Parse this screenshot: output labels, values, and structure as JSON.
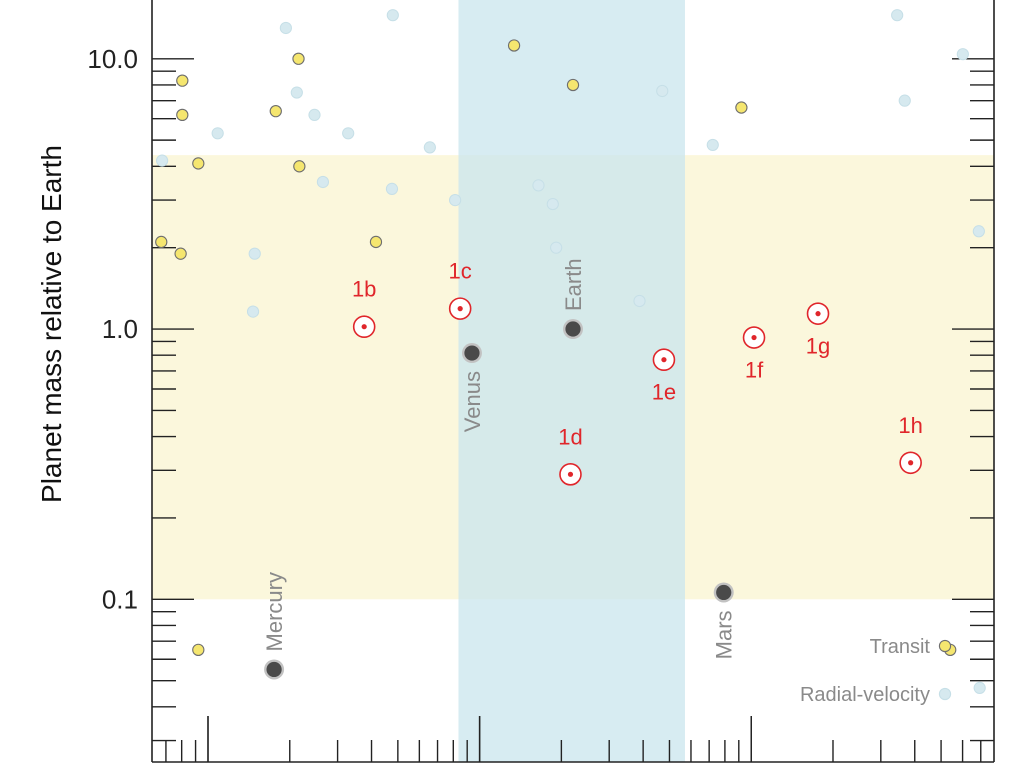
{
  "chart_data": {
    "type": "scatter",
    "ylabel": "Planet mass relative to Earth",
    "yscale": "log",
    "ylim": [
      0.025,
      16.5
    ],
    "xlim": [
      0,
      1
    ],
    "ytick_labels": [
      {
        "value": 0.1,
        "label": "0.1"
      },
      {
        "value": 1.0,
        "label": "1.0"
      },
      {
        "value": 10.0,
        "label": "10.0"
      }
    ],
    "bands": [
      {
        "name": "habitable-zone",
        "orientation": "vertical",
        "from": 0.364,
        "to": 0.633,
        "color": "#cce7ee"
      },
      {
        "name": "mass-range",
        "orientation": "horizontal",
        "from": 0.1,
        "to": 4.4,
        "color": "#fbf7dc"
      }
    ],
    "legend": {
      "placement": "bottom-right",
      "entries": [
        {
          "label": "Transit",
          "color": "#f5e66f"
        },
        {
          "label": "Radial-velocity",
          "color": "#d6e9ef"
        }
      ]
    },
    "colors": {
      "transit_fill": "#f5e66f",
      "transit_stroke": "#6e6e6e",
      "rv_fill": "#d6e9ef",
      "trappist": "#e0262b",
      "solar_fill": "#4a4a4a",
      "solar_ring": "#c2c2c2",
      "solar_label": "#8a8a8a"
    },
    "trappist_planets": [
      {
        "label": "1b",
        "x": 0.252,
        "y": 1.02,
        "label_pos": "above"
      },
      {
        "label": "1c",
        "x": 0.366,
        "y": 1.19,
        "label_pos": "above"
      },
      {
        "label": "1d",
        "x": 0.497,
        "y": 0.29,
        "label_pos": "above"
      },
      {
        "label": "1e",
        "x": 0.608,
        "y": 0.77,
        "label_pos": "below"
      },
      {
        "label": "1f",
        "x": 0.715,
        "y": 0.93,
        "label_pos": "below"
      },
      {
        "label": "1g",
        "x": 0.791,
        "y": 1.14,
        "label_pos": "below"
      },
      {
        "label": "1h",
        "x": 0.901,
        "y": 0.32,
        "label_pos": "above"
      }
    ],
    "solar_planets": [
      {
        "label": "Mercury",
        "x": 0.145,
        "y": 0.055,
        "label_pos": "above"
      },
      {
        "label": "Venus",
        "x": 0.38,
        "y": 0.815,
        "label_pos": "below"
      },
      {
        "label": "Earth",
        "x": 0.5,
        "y": 1.0,
        "label_pos": "above"
      },
      {
        "label": "Mars",
        "x": 0.679,
        "y": 0.106,
        "label_pos": "below"
      }
    ],
    "transit_points": [
      {
        "x": 0.011,
        "y": 2.1
      },
      {
        "x": 0.036,
        "y": 8.3
      },
      {
        "x": 0.036,
        "y": 6.2
      },
      {
        "x": 0.034,
        "y": 1.9
      },
      {
        "x": 0.055,
        "y": 4.1
      },
      {
        "x": 0.055,
        "y": 0.065
      },
      {
        "x": 0.147,
        "y": 6.4
      },
      {
        "x": 0.174,
        "y": 10.0
      },
      {
        "x": 0.175,
        "y": 4.0
      },
      {
        "x": 0.266,
        "y": 2.1
      },
      {
        "x": 0.43,
        "y": 11.2
      },
      {
        "x": 0.5,
        "y": 8.0
      },
      {
        "x": 0.7,
        "y": 6.6
      },
      {
        "x": 0.948,
        "y": 0.065
      }
    ],
    "rv_points": [
      {
        "x": 0.012,
        "y": 4.2
      },
      {
        "x": 0.078,
        "y": 5.3
      },
      {
        "x": 0.159,
        "y": 13.0
      },
      {
        "x": 0.172,
        "y": 7.5
      },
      {
        "x": 0.193,
        "y": 6.2
      },
      {
        "x": 0.203,
        "y": 3.5
      },
      {
        "x": 0.233,
        "y": 5.3
      },
      {
        "x": 0.122,
        "y": 1.9
      },
      {
        "x": 0.12,
        "y": 1.16
      },
      {
        "x": 0.285,
        "y": 3.3
      },
      {
        "x": 0.286,
        "y": 14.5
      },
      {
        "x": 0.33,
        "y": 4.7
      },
      {
        "x": 0.36,
        "y": 3.0
      },
      {
        "x": 0.459,
        "y": 3.4
      },
      {
        "x": 0.476,
        "y": 2.9
      },
      {
        "x": 0.48,
        "y": 2.0
      },
      {
        "x": 0.579,
        "y": 1.27
      },
      {
        "x": 0.606,
        "y": 7.6
      },
      {
        "x": 0.666,
        "y": 4.8
      },
      {
        "x": 0.885,
        "y": 14.5
      },
      {
        "x": 0.894,
        "y": 7.0
      },
      {
        "x": 0.963,
        "y": 10.4
      },
      {
        "x": 0.982,
        "y": 2.3
      },
      {
        "x": 0.983,
        "y": 0.047
      }
    ]
  }
}
